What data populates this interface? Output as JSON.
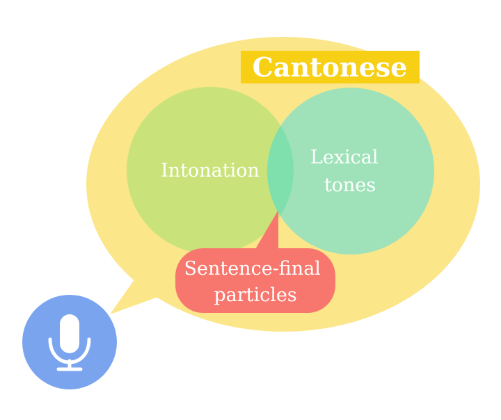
{
  "diagram": {
    "title": "Cantonese",
    "left_circle_label": "Intonation",
    "right_circle_label_lines": [
      "Lexical",
      "tones"
    ],
    "callout_label_lines": [
      "Sentence-final",
      "particles"
    ],
    "icon": "microphone-icon"
  },
  "colors": {
    "speech_bubble": "#fbe68a",
    "title_box": "#f7cf14",
    "left_circle": "#c9e37a",
    "right_circle": "#9fe2b9",
    "overlap": "#7fe0ad",
    "callout": "#f7776e",
    "mic_circle": "#7aa5ee",
    "text": "#ffffff"
  }
}
